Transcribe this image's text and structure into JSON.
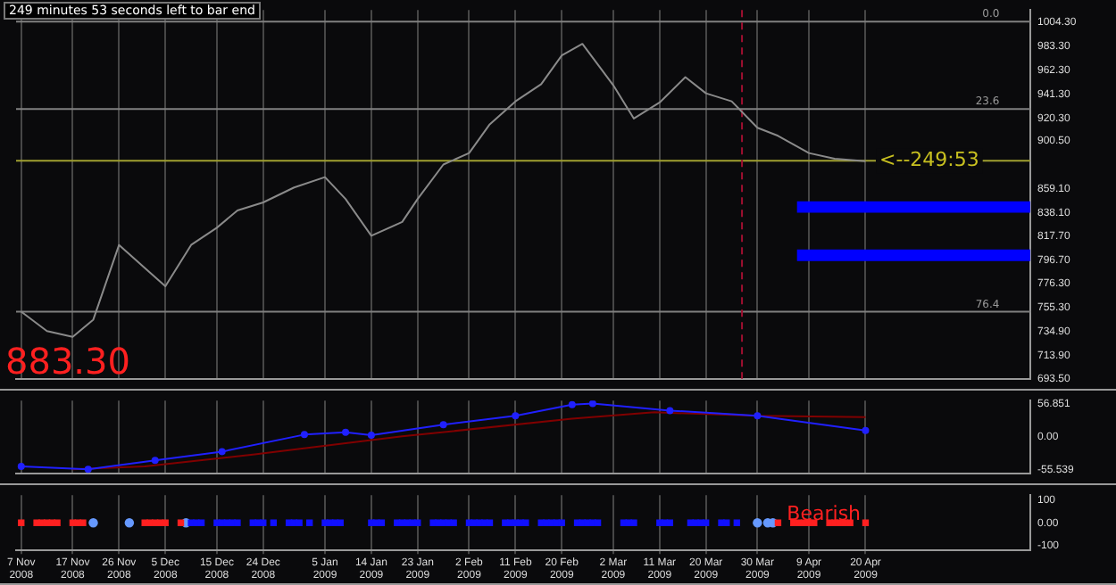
{
  "chart_data": [
    {
      "type": "line",
      "title": "249 minutes 53 seconds left to bar end",
      "x": [
        "2008-11-07",
        "2008-11-12",
        "2008-11-17",
        "2008-11-21",
        "2008-11-26",
        "2008-12-01",
        "2008-12-05",
        "2008-12-10",
        "2008-12-15",
        "2008-12-19",
        "2008-12-24",
        "2008-12-30",
        "2009-01-05",
        "2009-01-09",
        "2009-01-14",
        "2009-01-20",
        "2009-01-23",
        "2009-01-28",
        "2009-02-02",
        "2009-02-06",
        "2009-02-11",
        "2009-02-16",
        "2009-02-20",
        "2009-02-24",
        "2009-03-02",
        "2009-03-06",
        "2009-03-11",
        "2009-03-16",
        "2009-03-20",
        "2009-03-25",
        "2009-03-30",
        "2009-04-03",
        "2009-04-09",
        "2009-04-14",
        "2009-04-20"
      ],
      "series": [
        {
          "color": "#8a8a8a",
          "values": [
            752,
            735,
            730,
            745,
            810,
            790,
            774,
            810,
            825,
            840,
            847,
            860,
            869,
            850,
            818,
            830,
            850,
            880,
            890,
            915,
            935,
            950,
            975,
            985,
            949,
            920,
            934,
            956,
            942,
            935,
            912,
            905,
            890,
            885,
            883
          ]
        }
      ],
      "xlim": [
        "2008-11-06",
        "2009-05-22"
      ],
      "xticks": [
        "2008-11-07",
        "2008-11-17",
        "2008-11-26",
        "2008-12-05",
        "2008-12-15",
        "2008-12-24",
        "2009-01-05",
        "2009-01-14",
        "2009-01-23",
        "2009-02-02",
        "2009-02-11",
        "2009-02-20",
        "2009-03-02",
        "2009-03-11",
        "2009-03-20",
        "2009-03-30",
        "2009-04-09",
        "2009-04-20"
      ],
      "ylim": [
        693.5,
        1014.5
      ],
      "yticks": [
        {
          "value": 1004.3,
          "label": "1004.30"
        },
        {
          "value": 983.3,
          "label": "983.30"
        },
        {
          "value": 962.3,
          "label": "962.30"
        },
        {
          "value": 941.3,
          "label": "941.30"
        },
        {
          "value": 920.3,
          "label": "920.30"
        },
        {
          "value": 900.5,
          "label": "900.50"
        },
        {
          "value": 859.1,
          "label": "859.10"
        },
        {
          "value": 838.1,
          "label": "838.10"
        },
        {
          "value": 817.7,
          "label": "817.70"
        },
        {
          "value": 796.7,
          "label": "796.70"
        },
        {
          "value": 776.3,
          "label": "776.30"
        },
        {
          "value": 755.3,
          "label": "755.30"
        },
        {
          "value": 734.9,
          "label": "734.90"
        },
        {
          "value": 713.9,
          "label": "713.90"
        },
        {
          "value": 693.5,
          "label": "693.50"
        }
      ],
      "ref_lines": [
        {
          "axis": "y",
          "value": 1004.3,
          "color": "#808080",
          "line_style": "solid"
        },
        {
          "axis": "y",
          "value": 928.4,
          "color": "#808080",
          "line_style": "solid"
        },
        {
          "axis": "y",
          "value": 883.3,
          "color": "#a0a030",
          "line_style": "solid"
        },
        {
          "axis": "y",
          "value": 752,
          "color": "#808080",
          "line_style": "solid"
        },
        {
          "axis": "x",
          "value": "2009-03-27",
          "color": "#a01030",
          "line_style": "dashed"
        }
      ],
      "bands": [
        {
          "axis": "y",
          "from": 838,
          "to": 848,
          "color": "#0000ff"
        },
        {
          "axis": "y",
          "from": 796,
          "to": 806,
          "color": "#0000ff"
        }
      ],
      "annotations": [
        "883.30",
        {
          "text": "<--249:53",
          "x": "2009-04-22",
          "y": 883.3
        },
        {
          "text": "0.0",
          "x": "2009-05-16",
          "y": 1004.3
        },
        {
          "text": "23.6",
          "x": "2009-05-16",
          "y": 928.4
        },
        {
          "text": "76.4",
          "x": "2009-05-16",
          "y": 752
        }
      ],
      "grid": "x",
      "legend": false,
      "marker": "none",
      "tick_labels": "y"
    },
    {
      "type": "line",
      "series": [
        {
          "color": "#2020ff",
          "x": [
            "2008-11-07",
            "2008-11-20",
            "2008-12-03",
            "2008-12-16",
            "2009-01-01",
            "2009-01-09",
            "2009-01-14",
            "2009-01-28",
            "2009-02-11",
            "2009-02-22",
            "2009-02-26",
            "2009-03-13",
            "2009-03-30",
            "2009-04-20"
          ],
          "values": [
            -50,
            -55,
            -40,
            -25,
            4,
            8,
            3,
            21,
            36,
            55,
            57,
            45,
            36,
            11
          ]
        },
        {
          "color": "#800000",
          "marker": "none",
          "x": [
            "2008-11-17",
            "2008-12-01",
            "2008-12-22",
            "2009-01-20",
            "2009-02-22",
            "2009-03-10",
            "2009-03-30",
            "2009-04-20"
          ],
          "values": [
            -55,
            -50,
            -30,
            1,
            31,
            42,
            36,
            34
          ]
        }
      ],
      "xlim": [
        "2008-11-06",
        "2009-05-22"
      ],
      "xticks": [
        "2008-11-07",
        "2008-11-17",
        "2008-11-26",
        "2008-12-05",
        "2008-12-15",
        "2008-12-24",
        "2009-01-05",
        "2009-01-14",
        "2009-01-23",
        "2009-02-02",
        "2009-02-11",
        "2009-02-20",
        "2009-03-02",
        "2009-03-11",
        "2009-03-20",
        "2009-03-30",
        "2009-04-09",
        "2009-04-20"
      ],
      "ylim": [
        -62,
        62
      ],
      "yticks": [
        56.851,
        {
          "value": 0,
          "label": "0.00"
        },
        -55.539
      ],
      "grid": "x",
      "legend": false,
      "marker": "circle",
      "tick_labels": "y"
    },
    {
      "type": "scatter",
      "series": [
        {
          "color": "#ff2020",
          "x": [
            "2008-11-07",
            "2008-11-10",
            "2008-11-11",
            "2008-11-12",
            "2008-11-13",
            "2008-11-14",
            "2008-11-17",
            "2008-11-18",
            "2008-11-19",
            "2008-12-01",
            "2008-12-02",
            "2008-12-03",
            "2008-12-04",
            "2008-12-05",
            "2008-12-08",
            "2009-04-03",
            "2009-04-06",
            "2009-04-07",
            "2009-04-08",
            "2009-04-09",
            "2009-04-10",
            "2009-04-13",
            "2009-04-14",
            "2009-04-15",
            "2009-04-16",
            "2009-04-17",
            "2009-04-20"
          ],
          "values": [
            0,
            0,
            0,
            0,
            0,
            0,
            0,
            0,
            0,
            0,
            0,
            0,
            0,
            0,
            0,
            0,
            0,
            0,
            0,
            0,
            0,
            0,
            0,
            0,
            0,
            0,
            0
          ]
        },
        {
          "color": "#1010ff",
          "x": [
            "2008-12-10",
            "2008-12-11",
            "2008-12-12",
            "2008-12-15",
            "2008-12-16",
            "2008-12-17",
            "2008-12-18",
            "2008-12-19",
            "2008-12-22",
            "2008-12-23",
            "2008-12-24",
            "2008-12-26",
            "2008-12-29",
            "2008-12-30",
            "2008-12-31",
            "2009-01-02",
            "2009-01-05",
            "2009-01-06",
            "2009-01-07",
            "2009-01-08",
            "2009-01-14",
            "2009-01-15",
            "2009-01-16",
            "2009-01-19",
            "2009-01-20",
            "2009-01-21",
            "2009-01-22",
            "2009-01-23",
            "2009-01-26",
            "2009-01-27",
            "2009-01-28",
            "2009-01-29",
            "2009-01-30",
            "2009-02-02",
            "2009-02-03",
            "2009-02-04",
            "2009-02-05",
            "2009-02-06",
            "2009-02-09",
            "2009-02-10",
            "2009-02-11",
            "2009-02-12",
            "2009-02-13",
            "2009-02-16",
            "2009-02-17",
            "2009-02-18",
            "2009-02-19",
            "2009-02-20",
            "2009-02-23",
            "2009-02-24",
            "2009-02-25",
            "2009-02-26",
            "2009-02-27",
            "2009-03-04",
            "2009-03-05",
            "2009-03-06",
            "2009-03-11",
            "2009-03-12",
            "2009-03-13",
            "2009-03-17",
            "2009-03-18",
            "2009-03-19",
            "2009-03-20",
            "2009-03-23",
            "2009-03-24",
            "2009-03-26"
          ],
          "values": [
            0,
            0,
            0,
            0,
            0,
            0,
            0,
            0,
            0,
            0,
            0,
            0,
            0,
            0,
            0,
            0,
            0,
            0,
            0,
            0,
            0,
            0,
            0,
            0,
            0,
            0,
            0,
            0,
            0,
            0,
            0,
            0,
            0,
            0,
            0,
            0,
            0,
            0,
            0,
            0,
            0,
            0,
            0,
            0,
            0,
            0,
            0,
            0,
            0,
            0,
            0,
            0,
            0,
            0,
            0,
            0,
            0,
            0,
            0,
            0,
            0,
            0,
            0,
            0,
            0,
            0
          ]
        },
        {
          "color": "#6699ff",
          "marker": "circle",
          "x": [
            "2008-11-21",
            "2008-11-28",
            "2008-12-09",
            "2009-03-30",
            "2009-04-01",
            "2009-04-02"
          ],
          "values": [
            0,
            0,
            0,
            0,
            0,
            0
          ]
        }
      ],
      "xlim": [
        "2008-11-06",
        "2009-05-22"
      ],
      "xticks": [
        {
          "value": "2008-11-07",
          "label": "7 Nov 2008"
        },
        {
          "value": "2008-11-17",
          "label": "17 Nov 2008"
        },
        {
          "value": "2008-11-26",
          "label": "26 Nov 2008"
        },
        {
          "value": "2008-12-05",
          "label": "5 Dec 2008"
        },
        {
          "value": "2008-12-15",
          "label": "15 Dec 2008"
        },
        {
          "value": "2008-12-24",
          "label": "24 Dec 2008"
        },
        {
          "value": "2009-01-05",
          "label": "5 Jan 2009"
        },
        {
          "value": "2009-01-14",
          "label": "14 Jan 2009"
        },
        {
          "value": "2009-01-23",
          "label": "23 Jan 2009"
        },
        {
          "value": "2009-02-02",
          "label": "2 Feb 2009"
        },
        {
          "value": "2009-02-11",
          "label": "11 Feb 2009"
        },
        {
          "value": "2009-02-20",
          "label": "20 Feb 2009"
        },
        {
          "value": "2009-03-02",
          "label": "2 Mar 2009"
        },
        {
          "value": "2009-03-11",
          "label": "11 Mar 2009"
        },
        {
          "value": "2009-03-20",
          "label": "20 Mar 2009"
        },
        {
          "value": "2009-03-30",
          "label": "30 Mar 2009"
        },
        {
          "value": "2009-04-09",
          "label": "9 Apr 2009"
        },
        {
          "value": "2009-04-20",
          "label": "20 Apr 2009"
        }
      ],
      "ylim": [
        -120,
        120
      ],
      "yticks": [
        100,
        {
          "value": 0,
          "label": "0.00"
        },
        -100
      ],
      "annotations": [
        "Bearish"
      ],
      "grid": "x",
      "legend": false,
      "marker": "square"
    }
  ]
}
